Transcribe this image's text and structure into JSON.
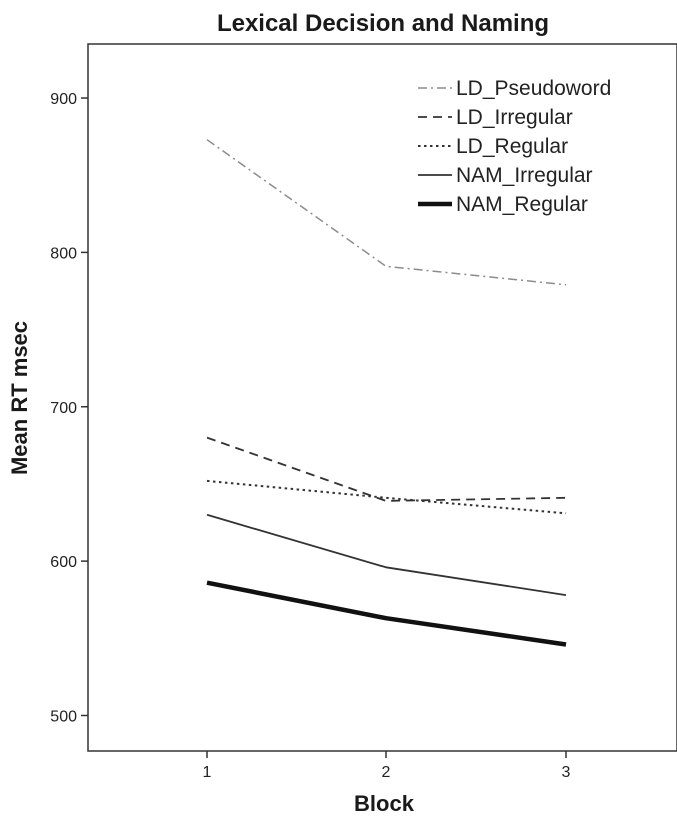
{
  "chart_data": {
    "type": "line",
    "title": "Lexical Decision and Naming",
    "xlabel": "Block",
    "ylabel": "Mean RT msec",
    "x": [
      1,
      2,
      3
    ],
    "xticks": [
      "1",
      "2",
      "3"
    ],
    "yticks": [
      "500",
      "600",
      "700",
      "800",
      "900"
    ],
    "ylim": [
      477,
      935
    ],
    "grid": false,
    "legend_position": "top-right",
    "series": [
      {
        "name": "LD_Pseudoword",
        "values": [
          873,
          791,
          779
        ],
        "color": "#8c8c8c",
        "style": "dashdot",
        "width": 1.5
      },
      {
        "name": "LD_Irregular",
        "values": [
          680,
          639,
          641
        ],
        "color": "#333333",
        "style": "dashed",
        "width": 1.8
      },
      {
        "name": "LD_Regular",
        "values": [
          652,
          641,
          631
        ],
        "color": "#333333",
        "style": "dotted",
        "width": 2
      },
      {
        "name": "NAM_Irregular",
        "values": [
          630,
          596,
          578
        ],
        "color": "#333333",
        "style": "solid",
        "width": 1.8
      },
      {
        "name": "NAM_Regular",
        "values": [
          586,
          563,
          546
        ],
        "color": "#111111",
        "style": "solid",
        "width": 4.5
      }
    ]
  }
}
